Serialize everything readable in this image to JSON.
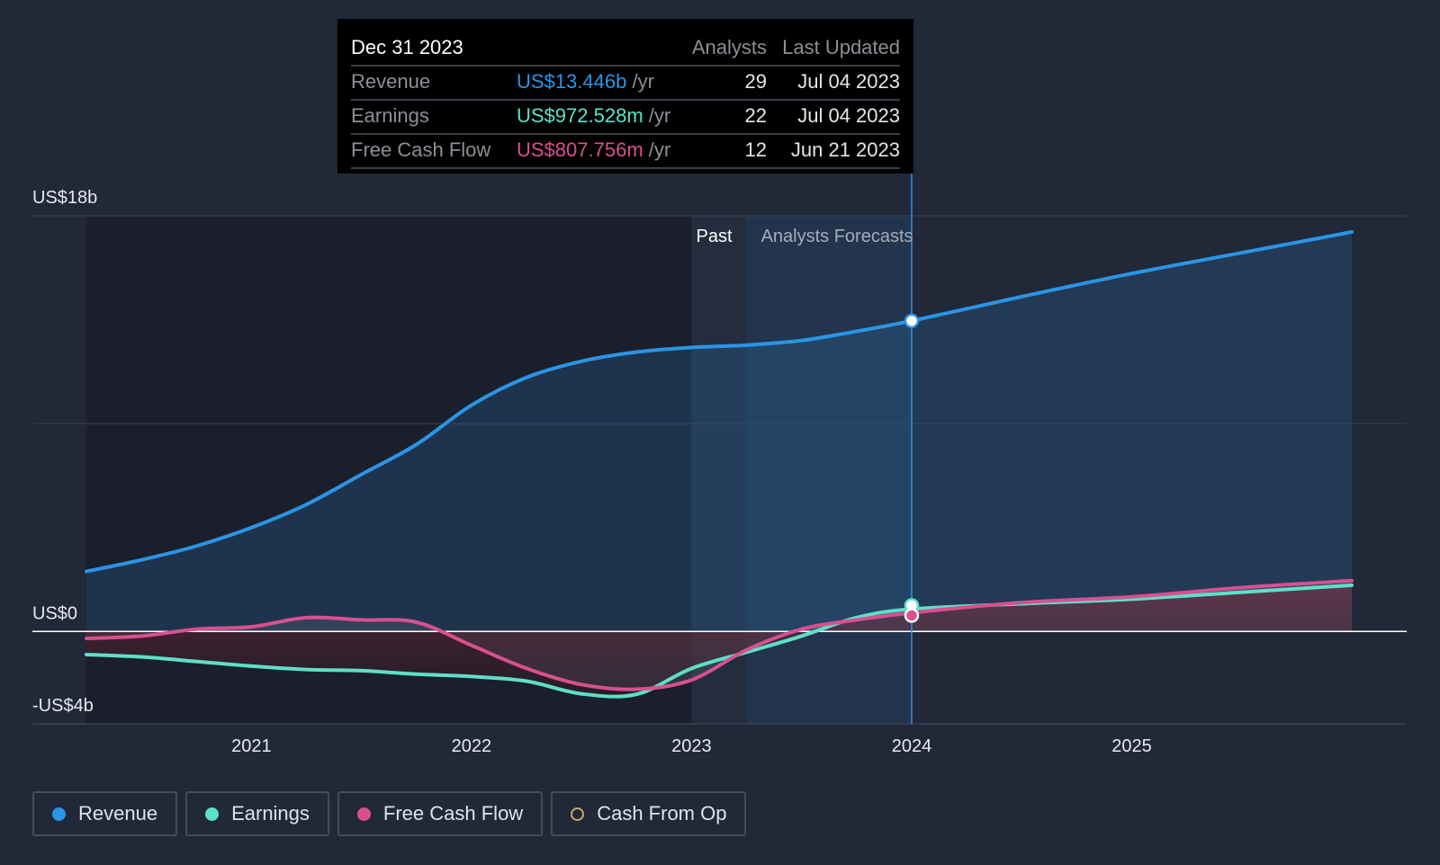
{
  "tooltip": {
    "date": "Dec 31 2023",
    "col_analysts": "Analysts",
    "col_updated": "Last Updated",
    "rows": [
      {
        "label": "Revenue",
        "value": "US$13.446b",
        "unit": "/yr",
        "analysts": "29",
        "updated": "Jul 04 2023",
        "color": "#2b94e5"
      },
      {
        "label": "Earnings",
        "value": "US$972.528m",
        "unit": "/yr",
        "analysts": "22",
        "updated": "Jul 04 2023",
        "color": "#5de0c8"
      },
      {
        "label": "Free Cash Flow",
        "value": "US$807.756m",
        "unit": "/yr",
        "analysts": "12",
        "updated": "Jun 21 2023",
        "color": "#d8508f"
      }
    ]
  },
  "chart_data": {
    "type": "line",
    "x_unit": "year",
    "y_unit": "US$ billions",
    "ylim": [
      -4,
      18
    ],
    "xlim": [
      2020.25,
      2026.0
    ],
    "y_tick_labels": [
      {
        "value": 18,
        "label": "US$18b"
      },
      {
        "value": 0,
        "label": "US$0"
      },
      {
        "value": -4,
        "label": "-US$4b"
      }
    ],
    "x_ticks": [
      {
        "value": 2021,
        "label": "2021"
      },
      {
        "value": 2022,
        "label": "2022"
      },
      {
        "value": 2023,
        "label": "2023"
      },
      {
        "value": 2024,
        "label": "2024"
      },
      {
        "value": 2025,
        "label": "2025"
      }
    ],
    "past_label": "Past",
    "forecast_label": "Analysts Forecasts",
    "past_end": 2023.25,
    "hover_x": 2024.0,
    "series": [
      {
        "name": "Revenue",
        "color": "#2b94e5",
        "points": [
          [
            2020.25,
            2.6
          ],
          [
            2020.5,
            3.1
          ],
          [
            2020.75,
            3.7
          ],
          [
            2021.0,
            4.5
          ],
          [
            2021.25,
            5.5
          ],
          [
            2021.5,
            6.8
          ],
          [
            2021.75,
            8.1
          ],
          [
            2022.0,
            9.8
          ],
          [
            2022.25,
            11.0
          ],
          [
            2022.5,
            11.7
          ],
          [
            2022.75,
            12.1
          ],
          [
            2023.0,
            12.3
          ],
          [
            2023.25,
            12.4
          ],
          [
            2023.5,
            12.6
          ],
          [
            2023.75,
            13.0
          ],
          [
            2024.0,
            13.45
          ],
          [
            2024.5,
            14.5
          ],
          [
            2025.0,
            15.5
          ],
          [
            2025.5,
            16.4
          ],
          [
            2026.0,
            17.3
          ]
        ]
      },
      {
        "name": "Earnings",
        "color": "#5de0c8",
        "points": [
          [
            2020.25,
            -1.0
          ],
          [
            2020.5,
            -1.1
          ],
          [
            2020.75,
            -1.3
          ],
          [
            2021.0,
            -1.5
          ],
          [
            2021.25,
            -1.65
          ],
          [
            2021.5,
            -1.7
          ],
          [
            2021.75,
            -1.85
          ],
          [
            2022.0,
            -1.95
          ],
          [
            2022.25,
            -2.15
          ],
          [
            2022.5,
            -2.7
          ],
          [
            2022.75,
            -2.72
          ],
          [
            2023.0,
            -1.6
          ],
          [
            2023.25,
            -0.9
          ],
          [
            2023.5,
            -0.2
          ],
          [
            2023.75,
            0.6
          ],
          [
            2024.0,
            0.97
          ],
          [
            2024.5,
            1.2
          ],
          [
            2025.0,
            1.4
          ],
          [
            2025.5,
            1.7
          ],
          [
            2026.0,
            2.0
          ]
        ]
      },
      {
        "name": "Free Cash Flow",
        "color": "#d8508f",
        "points": [
          [
            2020.25,
            -0.3
          ],
          [
            2020.5,
            -0.2
          ],
          [
            2020.75,
            0.1
          ],
          [
            2021.0,
            0.2
          ],
          [
            2021.25,
            0.6
          ],
          [
            2021.5,
            0.5
          ],
          [
            2021.75,
            0.4
          ],
          [
            2022.0,
            -0.6
          ],
          [
            2022.25,
            -1.6
          ],
          [
            2022.5,
            -2.3
          ],
          [
            2022.75,
            -2.5
          ],
          [
            2023.0,
            -2.1
          ],
          [
            2023.25,
            -0.8
          ],
          [
            2023.5,
            0.1
          ],
          [
            2023.75,
            0.5
          ],
          [
            2024.0,
            0.81
          ],
          [
            2024.5,
            1.25
          ],
          [
            2025.0,
            1.5
          ],
          [
            2025.5,
            1.9
          ],
          [
            2026.0,
            2.2
          ]
        ]
      }
    ]
  },
  "legend": [
    {
      "label": "Revenue",
      "color": "#2b94e5",
      "filled": true
    },
    {
      "label": "Earnings",
      "color": "#5de0c8",
      "filled": true
    },
    {
      "label": "Free Cash Flow",
      "color": "#d8508f",
      "filled": true
    },
    {
      "label": "Cash From Op",
      "color": "#c9a96a",
      "filled": false
    }
  ]
}
